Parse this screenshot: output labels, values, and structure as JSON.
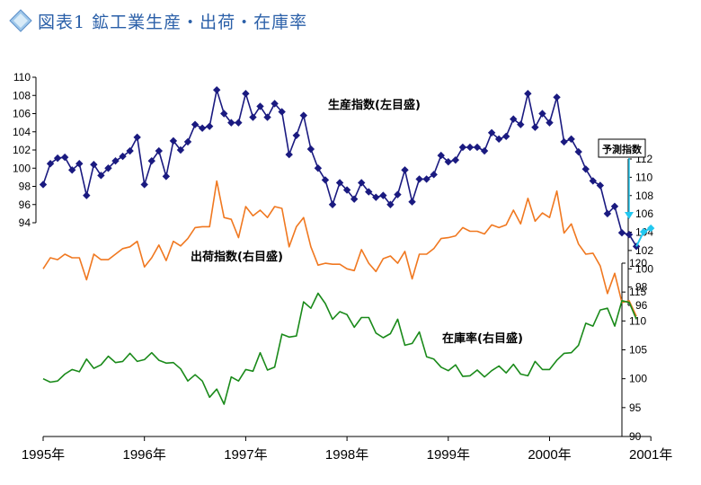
{
  "title": "図表1 鉱工業生産・出荷・在庫率",
  "title_icon": "diamond-icon",
  "colors": {
    "production": "#1a1a80",
    "shipment": "#f07820",
    "inventory": "#1a8a1a",
    "forecast": "#22c8f0",
    "title": "#2a5fa8"
  },
  "chart_data": {
    "type": "line",
    "x_ticks": [
      "1995年",
      "1996年",
      "1997年",
      "1998年",
      "1999年",
      "2000年",
      "2001年"
    ],
    "series": [
      {
        "name": "生産指数(左目盛)",
        "axis": "left",
        "axis_ticks": [
          94,
          96,
          98,
          100,
          102,
          104,
          106,
          108,
          110
        ],
        "values": [
          98.2,
          100.5,
          101.1,
          101.2,
          99.8,
          100.5,
          97.0,
          100.4,
          99.2,
          100.0,
          100.8,
          101.3,
          101.9,
          103.4,
          98.2,
          100.8,
          101.9,
          99.1,
          103.0,
          102.0,
          102.9,
          104.8,
          104.4,
          104.6,
          108.6,
          106.0,
          105.0,
          105.0,
          108.2,
          105.6,
          106.8,
          105.6,
          107.1,
          106.2,
          101.5,
          103.6,
          105.8,
          102.1,
          100.0,
          98.7,
          96.0,
          98.4,
          97.6,
          96.6,
          98.4,
          97.4,
          96.8,
          97.0,
          96.0,
          97.1,
          99.8,
          96.3,
          98.8,
          98.8,
          99.3,
          101.4,
          100.7,
          100.9,
          102.3,
          102.3,
          102.3,
          101.9,
          103.9,
          103.2,
          103.5,
          105.4,
          104.8,
          108.2,
          104.5,
          106.0,
          105.0,
          107.8,
          102.9,
          103.2,
          101.8,
          99.9,
          98.6,
          98.1,
          95.0,
          95.8,
          92.9,
          92.7,
          91.4
        ]
      },
      {
        "name": "出荷指数(右目盛)",
        "axis": "right_upper",
        "axis_ticks": [
          96,
          98,
          100,
          102,
          104,
          106,
          108,
          110,
          112
        ],
        "values": [
          100.0,
          101.2,
          101.0,
          101.6,
          101.2,
          101.2,
          98.8,
          101.6,
          101.0,
          101.0,
          101.6,
          102.2,
          102.4,
          103.0,
          100.2,
          101.2,
          102.6,
          100.9,
          103.0,
          102.5,
          103.3,
          104.5,
          104.6,
          104.6,
          109.6,
          105.6,
          105.4,
          103.4,
          106.8,
          105.8,
          106.4,
          105.6,
          106.8,
          106.6,
          102.4,
          104.6,
          105.6,
          102.4,
          100.4,
          100.6,
          100.5,
          100.5,
          100.0,
          99.8,
          102.1,
          100.6,
          99.7,
          101.1,
          101.4,
          100.6,
          101.9,
          98.9,
          101.6,
          101.6,
          102.2,
          103.3,
          103.4,
          103.6,
          104.5,
          104.1,
          104.1,
          103.8,
          104.8,
          104.5,
          104.8,
          106.4,
          104.9,
          107.7,
          105.2,
          106.1,
          105.6,
          108.5,
          103.9,
          104.9,
          102.7,
          101.6,
          101.7,
          100.3,
          97.3,
          99.5,
          96.3,
          96.5,
          94.8
        ]
      },
      {
        "name": "在庫率(右目盛)",
        "axis": "right_lower",
        "axis_ticks": [
          90,
          95,
          100,
          105,
          110,
          115,
          120
        ],
        "values": [
          100.0,
          99.4,
          99.6,
          100.8,
          101.6,
          101.2,
          103.4,
          101.8,
          102.4,
          103.9,
          102.8,
          103.0,
          104.4,
          103.0,
          103.3,
          104.5,
          103.2,
          102.7,
          102.8,
          101.7,
          99.6,
          100.7,
          99.6,
          96.8,
          98.2,
          95.6,
          100.3,
          99.6,
          101.6,
          101.3,
          104.5,
          101.5,
          102.0,
          107.7,
          107.2,
          107.4,
          113.3,
          112.2,
          114.8,
          113.0,
          110.3,
          111.6,
          111.1,
          108.9,
          110.6,
          110.6,
          107.9,
          107.1,
          107.8,
          110.3,
          105.8,
          106.1,
          108.1,
          103.8,
          103.4,
          102.0,
          101.4,
          102.4,
          100.4,
          100.5,
          101.5,
          100.3,
          101.4,
          102.2,
          101.0,
          102.5,
          100.8,
          100.5,
          103.0,
          101.6,
          101.6,
          103.2,
          104.4,
          104.5,
          105.8,
          109.6,
          109.1,
          111.9,
          112.2,
          109.1,
          113.5,
          113.2,
          110.3
        ]
      },
      {
        "name": "予測指数",
        "axis": "left",
        "start_index": 82,
        "values": [
          91.4,
          93.0,
          93.4
        ]
      }
    ],
    "xlabel": "",
    "ylabel": "",
    "grid": false,
    "labels": {
      "production": "生産指数(左目盛)",
      "shipment": "出荷指数(右目盛)",
      "inventory": "在庫率(右目盛)",
      "forecast": "予測指数"
    }
  }
}
